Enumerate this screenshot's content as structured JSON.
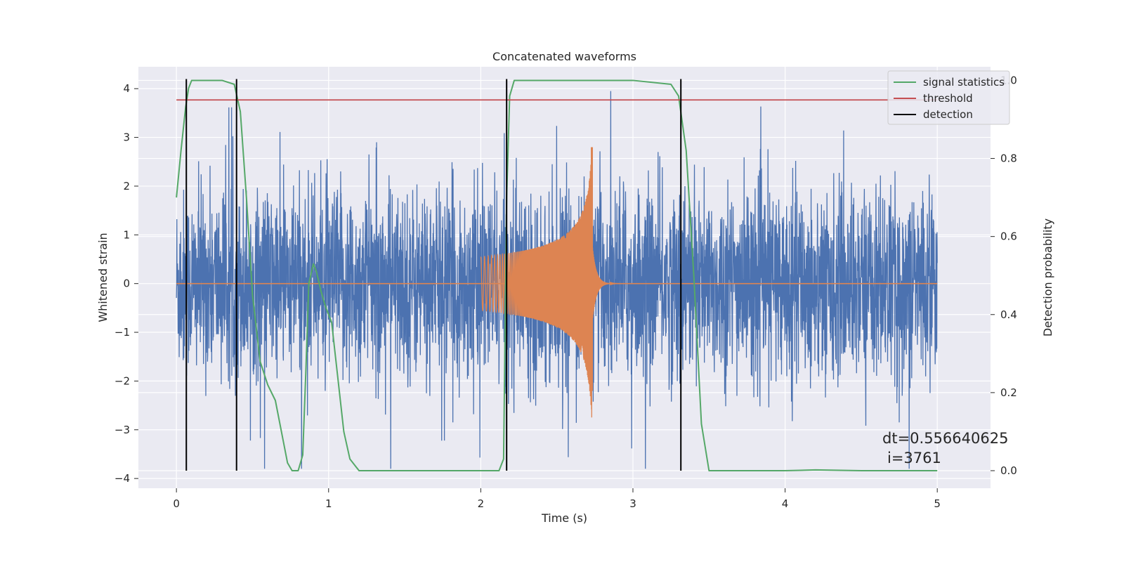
{
  "chart_data": {
    "type": "line",
    "title": "Concatenated waveforms",
    "xlabel": "Time (s)",
    "ylabel": "Whitened strain",
    "y2label": "Detection probability",
    "xlim": [
      -0.25,
      5.35
    ],
    "ylim": [
      -4.2,
      4.45
    ],
    "y2lim": [
      -0.045,
      1.035
    ],
    "xticks": [
      0,
      1,
      2,
      3,
      4,
      5
    ],
    "yticks": [
      -4,
      -3,
      -2,
      -1,
      0,
      1,
      2,
      3,
      4
    ],
    "y2ticks": [
      0.0,
      0.2,
      0.4,
      0.6,
      0.8,
      1.0
    ],
    "ytick_labels": [
      "−4",
      "−3",
      "−2",
      "−1",
      "0",
      "1",
      "2",
      "3",
      "4"
    ],
    "y2tick_labels": [
      "0.0",
      "0.2",
      "0.4",
      "0.6",
      "0.8",
      "1.0"
    ],
    "grid": true,
    "legend_position": "top-right",
    "series": [
      {
        "name": "",
        "color": "#4c72b0",
        "description_values": {
          "x_range": [
            0,
            5
          ],
          "amplitude_typical": 1.3,
          "amplitude_peak": 4.0
        }
      },
      {
        "name": "",
        "color": "#dd8452",
        "description_values": {
          "x_chirp": [
            2.0,
            2.73
          ],
          "amplitude_start": 0.6,
          "amplitude_peak": 2.8
        }
      },
      {
        "name": "signal statistics",
        "color": "#55a868",
        "axis": "right",
        "x": [
          0.0,
          0.03,
          0.06,
          0.08,
          0.1,
          0.15,
          0.3,
          0.38,
          0.42,
          0.46,
          0.5,
          0.55,
          0.6,
          0.65,
          0.7,
          0.73,
          0.76,
          0.8,
          0.83,
          0.85,
          0.87,
          0.9,
          0.92,
          0.95,
          0.98,
          1.02,
          1.06,
          1.1,
          1.14,
          1.2,
          1.4,
          1.6,
          1.8,
          2.0,
          2.12,
          2.15,
          2.17,
          2.19,
          2.22,
          2.5,
          3.0,
          3.25,
          3.3,
          3.35,
          3.4,
          3.45,
          3.5,
          3.6,
          4.0,
          4.2,
          4.5,
          5.0
        ],
        "y": [
          0.7,
          0.82,
          0.93,
          0.98,
          1.0,
          1.0,
          1.0,
          0.99,
          0.92,
          0.7,
          0.45,
          0.28,
          0.22,
          0.18,
          0.08,
          0.02,
          0.0,
          0.0,
          0.04,
          0.25,
          0.48,
          0.53,
          0.51,
          0.46,
          0.42,
          0.38,
          0.24,
          0.1,
          0.03,
          0.0,
          0.0,
          0.0,
          0.0,
          0.0,
          0.0,
          0.03,
          0.7,
          0.96,
          1.0,
          1.0,
          1.0,
          0.99,
          0.96,
          0.82,
          0.5,
          0.12,
          0.0,
          0.0,
          0.0,
          0.002,
          0.0,
          0.0
        ]
      },
      {
        "name": "threshold",
        "color": "#c44e52",
        "axis": "right",
        "x": [
          0,
          5
        ],
        "y": [
          0.95,
          0.95
        ]
      },
      {
        "name": "detection",
        "color": "#000000",
        "axis": "right",
        "x": [
          0.065,
          0.395,
          2.17,
          3.315
        ],
        "y_range": [
          0,
          1
        ]
      }
    ],
    "annotations": [
      "dt=0.556640625",
      "i=3761"
    ]
  }
}
